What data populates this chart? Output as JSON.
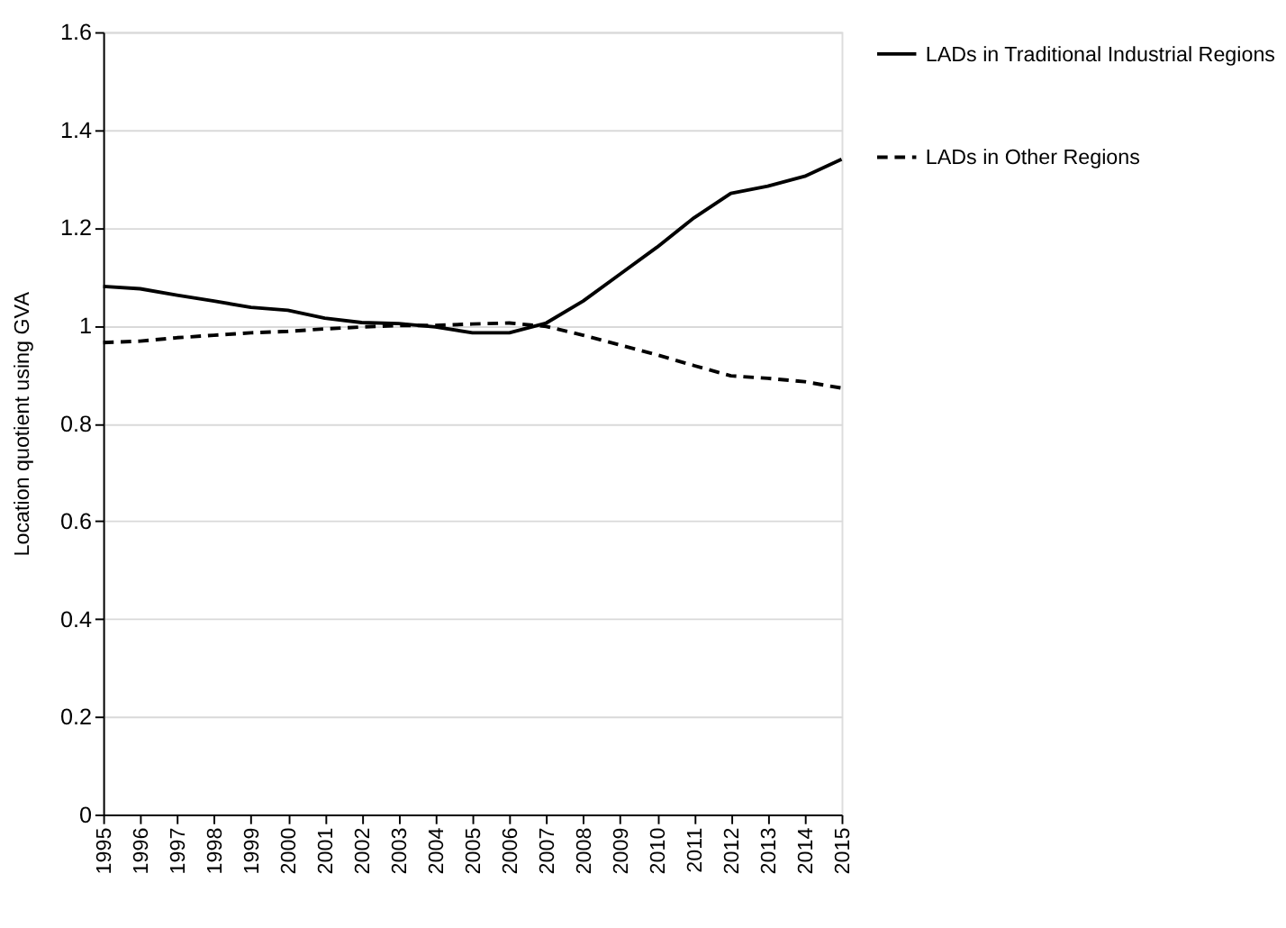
{
  "chart_data": {
    "type": "line",
    "ylabel": "Location quotient using GVA",
    "categories": [
      "1995",
      "1996",
      "1997",
      "1998",
      "1999",
      "2000",
      "2001",
      "2002",
      "2003",
      "2004",
      "2005",
      "2006",
      "2007",
      "2008",
      "2009",
      "2010",
      "2011",
      "2012",
      "2013",
      "2014",
      "2015"
    ],
    "series": [
      {
        "name": "LADs in Traditional Industrial Regions",
        "color": "#000000",
        "line_style": "solid",
        "values": [
          1.08,
          1.075,
          1.062,
          1.05,
          1.037,
          1.031,
          1.015,
          1.006,
          1.004,
          0.997,
          0.985,
          0.985,
          1.005,
          1.05,
          1.105,
          1.16,
          1.22,
          1.27,
          1.285,
          1.305,
          1.34
        ]
      },
      {
        "name": "LADs in Other Regions",
        "color": "#000000",
        "line_style": "dashed",
        "values": [
          0.965,
          0.968,
          0.975,
          0.98,
          0.985,
          0.988,
          0.993,
          0.997,
          1.0,
          1.0,
          1.003,
          1.005,
          0.998,
          0.98,
          0.96,
          0.94,
          0.918,
          0.897,
          0.892,
          0.885,
          0.872
        ]
      }
    ],
    "ylim": [
      0,
      1.6
    ],
    "yticks": [
      0,
      0.2,
      0.4,
      0.6,
      0.8,
      1,
      1.2,
      1.4,
      1.6
    ],
    "grid": "y",
    "legend": "right",
    "marker": "none"
  }
}
